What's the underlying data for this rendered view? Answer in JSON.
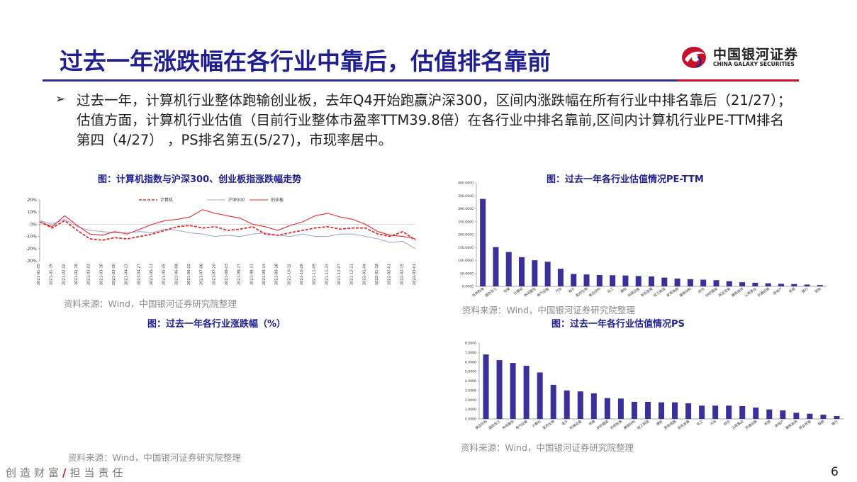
{
  "slide": {
    "title": "过去一年涨跌幅在各行业中靠后，估值排名靠前",
    "bullet": "过去一年，计算机行业整体跑输创业板，去年Q4开始跑赢沪深300，区间内涨跌幅在所有行业中排名靠后（21/27）；估值方面，计算机行业估值（目前行业整体市盈率TTM39.8倍）在各行业中排名靠前,区间内计算机行业PE-TTM排名第四（4/27） ，PS排名第五(5/27)，市现率居中。",
    "bullet_icon": "arrow-bullet-icon",
    "page_number": "6",
    "footer_left": "创造财富",
    "footer_slash": "/",
    "footer_right": "担当责任"
  },
  "logo": {
    "name_cn": "中国银河证券",
    "name_en": "CHINA GALAXY SECURITIES",
    "icon": "galaxy-logo-icon"
  },
  "colors": {
    "navy": "#1f1f8f",
    "red": "#c8102e",
    "bar": "#3b2f9a",
    "lavender": "#a6a6d8"
  },
  "charts": {
    "index": {
      "title": "图：计算机指数与沪深300、创业板指涨跌幅走势",
      "source": "资料来源：Wind，中国银河证券研究院整理"
    },
    "pe": {
      "title": "图：过去一年各行业估值情况PE-TTM",
      "source": "资料来源：Wind，中国银河证券研究院整理"
    },
    "return": {
      "title": "图：过去一年各行业涨跌幅（%）",
      "source": "资料来源：Wind，中国银河证券研究院整理"
    },
    "ps": {
      "title": "图：过去一年各行业估值情况PS",
      "source": "资料来源：Wind，中国银河证券研究院整理"
    }
  },
  "chart_data": [
    {
      "type": "line",
      "legend_position": "top",
      "y_tick_labels": [
        "20%",
        "10%",
        "0%",
        "-10%",
        "-20%",
        "-30%"
      ],
      "y_ticks": [
        20,
        10,
        0,
        -10,
        -20,
        -30
      ],
      "ylim": [
        -30,
        20
      ],
      "x": [
        "2021-01-05",
        "2021-01-19",
        "2021-02-02",
        "2021-02-16",
        "2021-03-02",
        "2021-03-16",
        "2021-03-30",
        "2021-04-13",
        "2021-04-27",
        "2021-05-11",
        "2021-05-25",
        "2021-06-08",
        "2021-06-22",
        "2021-07-06",
        "2021-07-20",
        "2021-08-03",
        "2021-08-17",
        "2021-08-31",
        "2021-09-14",
        "2021-09-28",
        "2021-10-12",
        "2021-10-26",
        "2021-11-09",
        "2021-11-23",
        "2021-12-07",
        "2021-12-21",
        "2022-01-04",
        "2022-01-18",
        "2022-02-01",
        "2022-02-15",
        "2022-03-01"
      ],
      "series": [
        {
          "name": "计算机",
          "color": "#e8292b",
          "dash": true,
          "values": [
            2,
            -3,
            3,
            -5,
            -12,
            -13,
            -11,
            -12,
            -10,
            -8,
            -5,
            -2,
            -1,
            -3,
            -2,
            -5,
            -4,
            -2,
            -8,
            -9,
            -7,
            -5,
            -3,
            -2,
            -4,
            -3,
            -3,
            -8,
            -10,
            -6,
            -13
          ]
        },
        {
          "name": "沪深300",
          "color": "#a6a6d8",
          "dash": false,
          "values": [
            3,
            0,
            4,
            -2,
            -5,
            -6,
            -7,
            -7,
            -6,
            -7,
            -4,
            -5,
            -7,
            -8,
            -10,
            -9,
            -10,
            -8,
            -7,
            -9,
            -10,
            -8,
            -10,
            -10,
            -8,
            -8,
            -10,
            -12,
            -15,
            -14,
            -20
          ]
        },
        {
          "name": "创业板",
          "color": "#e8292b",
          "dash": false,
          "values": [
            2,
            -2,
            7,
            -1,
            -8,
            -9,
            -6,
            -8,
            -4,
            0,
            3,
            4,
            6,
            12,
            9,
            7,
            5,
            0,
            -2,
            -5,
            -1,
            2,
            7,
            9,
            6,
            4,
            0,
            -6,
            -9,
            -10,
            -12
          ]
        }
      ]
    },
    {
      "type": "bar",
      "y_tick_labels": [
        "400.0000",
        "350.0000",
        "300.0000",
        "250.0000",
        "200.0000",
        "150.0000",
        "100.0000",
        "50.0000",
        "0.0000"
      ],
      "ylim": [
        0,
        400
      ],
      "categories": [
        "农林牧渔",
        "国防军工",
        "传媒",
        "计算机",
        "休闲服务",
        "电气设备",
        "汽车",
        "电子",
        "医药生物",
        "食品饮料",
        "化工",
        "通信",
        "机械设备",
        "有色金属",
        "轻工制造",
        "家用电器",
        "建筑材料",
        "综合",
        "纺织服装",
        "商业贸易",
        "建筑装饰",
        "公用事业",
        "交通运输",
        "房地产",
        "采掘",
        "银行",
        "钢铁"
      ],
      "values": [
        338,
        152,
        133,
        113,
        101,
        95,
        68,
        48,
        46,
        44,
        43,
        42,
        40,
        38,
        34,
        30,
        28,
        26,
        24,
        20,
        16,
        14,
        12,
        10,
        9,
        7,
        5
      ]
    },
    {
      "type": "bar",
      "y_tick_labels": [
        "8.0000",
        "7.0000",
        "6.0000",
        "5.0000",
        "4.0000",
        "3.0000",
        "2.0000",
        "1.0000",
        "0.0000"
      ],
      "ylim": [
        0,
        8
      ],
      "categories": [
        "食品饮料",
        "国防军工",
        "休闲服务",
        "电气设备",
        "计算机",
        "医药生物",
        "电子",
        "机械设备",
        "传媒",
        "纺织服装",
        "农林牧渔",
        "建筑材料",
        "轻工制造",
        "通信",
        "家用电器",
        "有色金属",
        "化工",
        "汽车",
        "综合",
        "公用事业",
        "交通运输",
        "采掘",
        "房地产",
        "建筑装饰",
        "商业贸易",
        "钢铁",
        "银行"
      ],
      "values": [
        6.8,
        6.2,
        5.9,
        5.6,
        4.9,
        3.6,
        3.0,
        2.9,
        2.7,
        2.2,
        2.15,
        1.8,
        1.8,
        1.75,
        1.75,
        1.65,
        1.4,
        1.4,
        1.4,
        1.35,
        1.2,
        1.0,
        0.9,
        0.65,
        0.55,
        0.45,
        0.3
      ]
    }
  ]
}
